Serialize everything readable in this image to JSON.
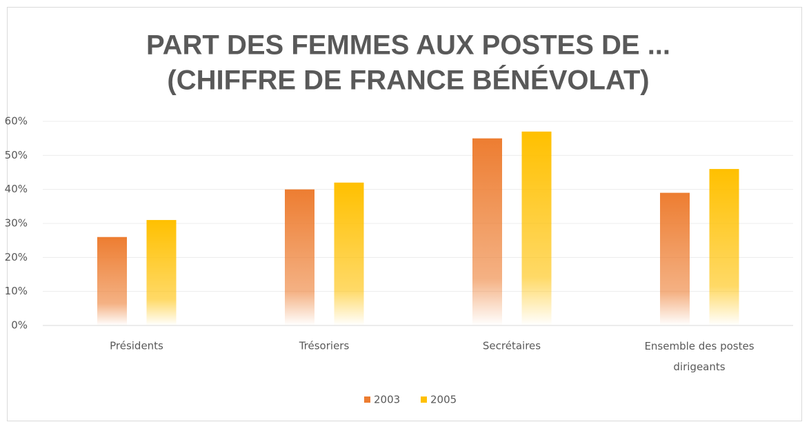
{
  "chart_data": {
    "type": "bar",
    "title": [
      "PART DES FEMMES AUX POSTES DE ...",
      "(CHIFFRE DE FRANCE BÉNÉVOLAT)"
    ],
    "categories": [
      "Présidents",
      "Trésoriers",
      "Secrétaires",
      "Ensemble des postes dirigeants"
    ],
    "series": [
      {
        "name": "2003",
        "color": "#ed7d31",
        "values": [
          26,
          40,
          55,
          39
        ]
      },
      {
        "name": "2005",
        "color": "#ffc000",
        "values": [
          31,
          42,
          57,
          46
        ]
      }
    ],
    "ylim": [
      0,
      60
    ],
    "yticks": [
      {
        "value": 0,
        "label": "0%"
      },
      {
        "value": 10,
        "label": "10%"
      },
      {
        "value": 20,
        "label": "20%"
      },
      {
        "value": 30,
        "label": "30%"
      },
      {
        "value": 40,
        "label": "40%"
      },
      {
        "value": 50,
        "label": "50%"
      },
      {
        "value": 60,
        "label": "60%"
      }
    ],
    "grid": true,
    "legend": "bottom"
  }
}
